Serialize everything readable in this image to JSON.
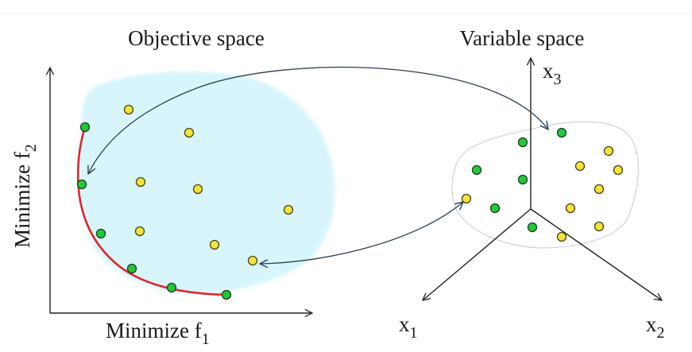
{
  "titles": {
    "objective": "Objective space",
    "variable": "Variable space"
  },
  "axes": {
    "f1_label": "Minimize f",
    "f1_sub": "1",
    "f2_label": "Minimize f",
    "f2_sub": "2",
    "x1": "x",
    "x1_sub": "1",
    "x2": "x",
    "x2_sub": "2",
    "x3": "x",
    "x3_sub": "3"
  },
  "colors": {
    "pareto_front": "#e0262b",
    "objective_region": "#d3f5fb",
    "pareto_point": "#22c93a",
    "dominated_point": "#f4e33a",
    "mapping_arrow": "#2b3f55"
  }
}
